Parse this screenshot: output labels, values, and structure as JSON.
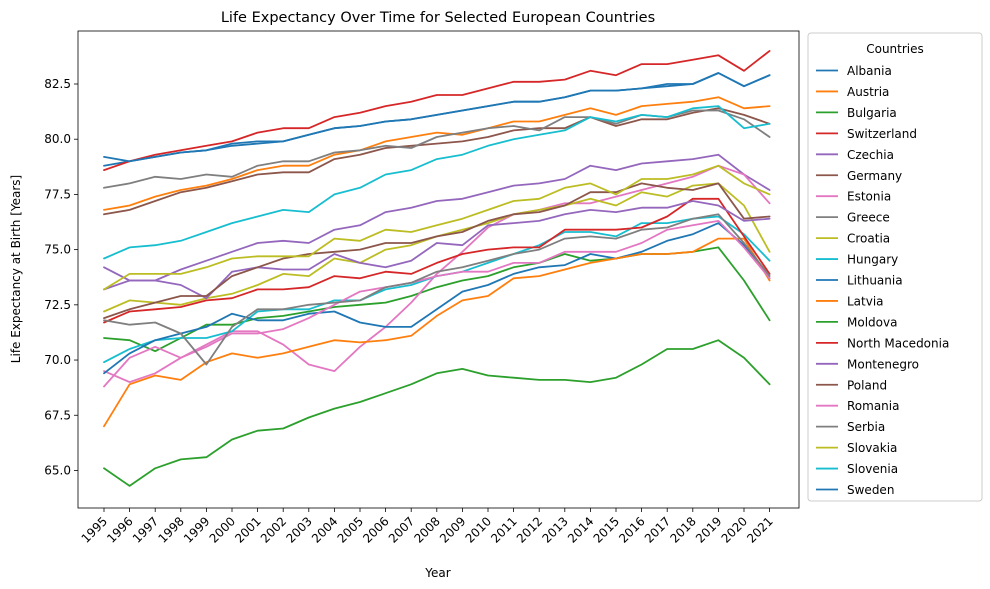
{
  "chart_data": {
    "type": "line",
    "title": "Life Expectancy Over Time for Selected European Countries",
    "xlabel": "Year",
    "ylabel": "Life Expectancy at Birth [Years]",
    "x": [
      "1995",
      "1996",
      "1997",
      "1998",
      "1999",
      "2000",
      "2001",
      "2002",
      "2003",
      "2004",
      "2005",
      "2006",
      "2007",
      "2008",
      "2009",
      "2010",
      "2011",
      "2012",
      "2013",
      "2014",
      "2015",
      "2016",
      "2017",
      "2018",
      "2019",
      "2020",
      "2021"
    ],
    "ylim": [
      63.3,
      84.9
    ],
    "yticks": [
      "65.0",
      "67.5",
      "70.0",
      "72.5",
      "75.0",
      "77.5",
      "80.0",
      "82.5"
    ],
    "grid": false,
    "legend": {
      "title": "Countries",
      "placement": "outside-right"
    },
    "series": [
      {
        "name": "Albania",
        "color": "#1f77b4",
        "values": [
          78.8,
          79.0,
          79.2,
          79.4,
          79.5,
          79.7,
          79.8,
          79.9,
          80.2,
          80.5,
          80.6,
          80.8,
          80.9,
          81.1,
          81.3,
          81.5,
          81.7,
          81.7,
          81.9,
          82.2,
          82.2,
          82.3,
          82.4,
          82.5,
          83.0,
          82.4,
          82.9
        ]
      },
      {
        "name": "Austria",
        "color": "#ff7f0e",
        "values": [
          76.8,
          77.0,
          77.4,
          77.7,
          77.9,
          78.2,
          78.6,
          78.8,
          78.8,
          79.3,
          79.5,
          79.9,
          80.1,
          80.3,
          80.2,
          80.5,
          80.8,
          80.8,
          81.1,
          81.4,
          81.1,
          81.5,
          81.6,
          81.7,
          81.9,
          81.4,
          81.5
        ]
      },
      {
        "name": "Bulgaria",
        "color": "#2ca02c",
        "values": [
          71.0,
          70.9,
          70.4,
          71.0,
          71.6,
          71.6,
          71.9,
          72.0,
          72.2,
          72.4,
          72.5,
          72.6,
          72.9,
          73.3,
          73.6,
          73.8,
          74.2,
          74.4,
          74.8,
          74.5,
          74.6,
          74.8,
          74.8,
          74.9,
          75.1,
          73.6,
          71.8
        ]
      },
      {
        "name": "Switzerland",
        "color": "#d62728",
        "values": [
          78.6,
          79.0,
          79.3,
          79.5,
          79.7,
          79.9,
          80.3,
          80.5,
          80.5,
          81.0,
          81.2,
          81.5,
          81.7,
          82.0,
          82.0,
          82.3,
          82.6,
          82.6,
          82.7,
          83.1,
          82.9,
          83.4,
          83.4,
          83.6,
          83.8,
          83.1,
          84.0
        ]
      },
      {
        "name": "Czechia",
        "color": "#9467bd",
        "values": [
          73.2,
          73.6,
          73.6,
          74.1,
          74.5,
          74.9,
          75.3,
          75.4,
          75.3,
          75.9,
          76.1,
          76.7,
          76.9,
          77.2,
          77.3,
          77.6,
          77.9,
          78.0,
          78.2,
          78.8,
          78.6,
          78.9,
          79.0,
          79.1,
          79.3,
          78.4,
          77.7
        ]
      },
      {
        "name": "Germany",
        "color": "#8c564b",
        "values": [
          76.6,
          76.8,
          77.2,
          77.6,
          77.8,
          78.1,
          78.4,
          78.5,
          78.5,
          79.1,
          79.3,
          79.6,
          79.7,
          79.8,
          79.9,
          80.1,
          80.4,
          80.5,
          80.5,
          81.0,
          80.6,
          80.9,
          80.9,
          81.2,
          81.4,
          81.1,
          80.7
        ]
      },
      {
        "name": "Estonia",
        "color": "#e377c2",
        "values": [
          69.5,
          69.0,
          69.4,
          70.1,
          70.7,
          71.3,
          71.3,
          70.7,
          69.8,
          69.5,
          70.6,
          71.5,
          72.6,
          73.9,
          74.9,
          76.0,
          76.6,
          76.8,
          77.1,
          77.1,
          77.4,
          77.7,
          78.0,
          78.3,
          78.8,
          78.4,
          77.1
        ]
      },
      {
        "name": "Greece",
        "color": "#7f7f7f",
        "values": [
          77.8,
          78.0,
          78.3,
          78.2,
          78.4,
          78.3,
          78.8,
          79.0,
          79.0,
          79.4,
          79.5,
          79.7,
          79.6,
          80.1,
          80.3,
          80.5,
          80.6,
          80.4,
          81.0,
          81.0,
          80.7,
          81.1,
          81.0,
          81.3,
          81.3,
          80.9,
          80.1
        ]
      },
      {
        "name": "Croatia",
        "color": "#bcbd22",
        "values": [
          72.2,
          72.7,
          72.6,
          72.5,
          72.8,
          73.0,
          73.4,
          73.9,
          73.8,
          74.6,
          74.4,
          75.0,
          75.2,
          75.6,
          75.9,
          76.2,
          76.6,
          76.8,
          77.0,
          77.3,
          77.0,
          77.6,
          77.4,
          77.9,
          78.0,
          77.0,
          74.9
        ]
      },
      {
        "name": "Hungary",
        "color": "#17becf",
        "values": [
          69.9,
          70.5,
          70.9,
          71.0,
          71.0,
          71.3,
          72.2,
          72.3,
          72.3,
          72.7,
          72.7,
          73.2,
          73.4,
          73.8,
          74.0,
          74.4,
          74.8,
          75.2,
          75.8,
          75.8,
          75.6,
          76.2,
          76.2,
          76.4,
          76.5,
          75.7,
          74.5
        ]
      },
      {
        "name": "Lithuania",
        "color": "#1f77b4",
        "values": [
          69.4,
          70.3,
          70.9,
          71.2,
          71.5,
          72.1,
          71.8,
          71.8,
          72.1,
          72.2,
          71.7,
          71.5,
          71.5,
          72.3,
          73.1,
          73.4,
          73.9,
          74.2,
          74.3,
          74.8,
          74.6,
          74.9,
          75.4,
          75.7,
          76.2,
          75.2,
          73.7
        ]
      },
      {
        "name": "Latvia",
        "color": "#ff7f0e",
        "values": [
          67.0,
          68.9,
          69.3,
          69.1,
          69.9,
          70.3,
          70.1,
          70.3,
          70.6,
          70.9,
          70.8,
          70.9,
          71.1,
          72.0,
          72.7,
          72.9,
          73.7,
          73.8,
          74.1,
          74.4,
          74.6,
          74.8,
          74.8,
          74.9,
          75.5,
          75.5,
          73.6
        ]
      },
      {
        "name": "Moldova",
        "color": "#2ca02c",
        "values": [
          65.1,
          64.3,
          65.1,
          65.5,
          65.6,
          66.4,
          66.8,
          66.9,
          67.4,
          67.8,
          68.1,
          68.5,
          68.9,
          69.4,
          69.6,
          69.3,
          69.2,
          69.1,
          69.1,
          69.0,
          69.2,
          69.8,
          70.5,
          70.5,
          70.9,
          70.1,
          68.9
        ]
      },
      {
        "name": "North Macedonia",
        "color": "#d62728",
        "values": [
          71.7,
          72.2,
          72.3,
          72.4,
          72.7,
          72.8,
          73.2,
          73.2,
          73.3,
          73.8,
          73.7,
          74.0,
          73.9,
          74.4,
          74.8,
          75.0,
          75.1,
          75.1,
          75.9,
          75.9,
          75.9,
          76.0,
          76.5,
          77.3,
          77.3,
          75.6,
          73.9
        ]
      },
      {
        "name": "Montenegro",
        "color": "#9467bd",
        "values": [
          74.2,
          73.6,
          73.6,
          73.4,
          72.8,
          74.0,
          74.2,
          74.1,
          74.1,
          74.8,
          74.4,
          74.2,
          74.5,
          75.3,
          75.2,
          76.1,
          76.2,
          76.3,
          76.6,
          76.8,
          76.7,
          76.9,
          76.9,
          77.2,
          77.0,
          76.3,
          76.4
        ]
      },
      {
        "name": "Poland",
        "color": "#8c564b",
        "values": [
          71.9,
          72.3,
          72.6,
          72.9,
          72.9,
          73.8,
          74.2,
          74.6,
          74.8,
          74.9,
          75.0,
          75.3,
          75.3,
          75.6,
          75.8,
          76.3,
          76.6,
          76.7,
          77.0,
          77.6,
          77.6,
          78.0,
          77.8,
          77.7,
          78.0,
          76.4,
          76.5
        ]
      },
      {
        "name": "Romania",
        "color": "#e377c2",
        "values": [
          68.8,
          70.1,
          70.6,
          70.1,
          70.6,
          71.2,
          71.2,
          71.4,
          71.9,
          72.5,
          73.1,
          73.3,
          73.5,
          73.8,
          74.0,
          74.0,
          74.4,
          74.4,
          74.9,
          74.9,
          74.9,
          75.3,
          75.9,
          76.1,
          76.3,
          75.1,
          73.7
        ]
      },
      {
        "name": "Serbia",
        "color": "#7f7f7f",
        "values": [
          71.8,
          71.6,
          71.7,
          71.2,
          69.8,
          71.5,
          72.3,
          72.3,
          72.5,
          72.6,
          72.7,
          73.3,
          73.5,
          74.0,
          74.2,
          74.5,
          74.8,
          75.0,
          75.5,
          75.6,
          75.5,
          75.9,
          76.0,
          76.4,
          76.6,
          75.3,
          73.8
        ]
      },
      {
        "name": "Slovakia",
        "color": "#bcbd22",
        "values": [
          73.2,
          73.9,
          73.9,
          73.9,
          74.2,
          74.6,
          74.7,
          74.7,
          74.7,
          75.5,
          75.4,
          75.9,
          75.8,
          76.1,
          76.4,
          76.8,
          77.2,
          77.3,
          77.8,
          78.0,
          77.5,
          78.2,
          78.2,
          78.4,
          78.8,
          78.0,
          77.5
        ]
      },
      {
        "name": "Slovenia",
        "color": "#17becf",
        "values": [
          74.6,
          75.1,
          75.2,
          75.4,
          75.8,
          76.2,
          76.5,
          76.8,
          76.7,
          77.5,
          77.8,
          78.4,
          78.6,
          79.1,
          79.3,
          79.7,
          80.0,
          80.2,
          80.4,
          81.0,
          80.8,
          81.1,
          81.0,
          81.4,
          81.5,
          80.5,
          80.7
        ]
      },
      {
        "name": "Sweden",
        "color": "#1f77b4",
        "values": [
          79.2,
          79.0,
          79.2,
          79.4,
          79.5,
          79.8,
          79.9,
          79.9,
          80.2,
          80.5,
          80.6,
          80.8,
          80.9,
          81.1,
          81.3,
          81.5,
          81.7,
          81.7,
          81.9,
          82.2,
          82.2,
          82.3,
          82.5,
          82.5,
          83.0,
          82.4,
          82.9
        ]
      }
    ]
  }
}
